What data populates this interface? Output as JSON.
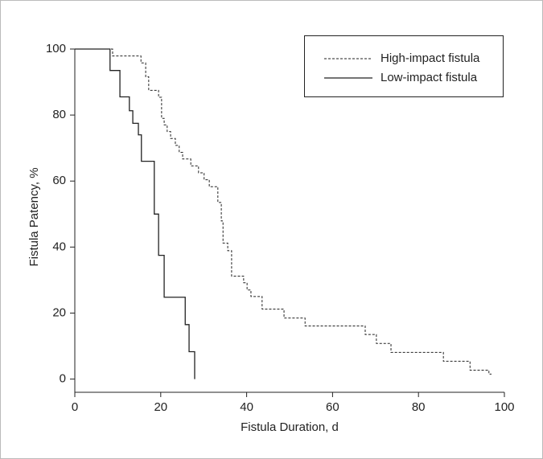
{
  "chart_data": {
    "type": "line",
    "xlabel": "Fistula Duration, d",
    "ylabel": "Fistula Patency, %",
    "xlim": [
      0,
      100
    ],
    "ylim": [
      -4,
      100
    ],
    "xticks": [
      0,
      20,
      40,
      60,
      80,
      100
    ],
    "yticks": [
      0,
      20,
      40,
      60,
      80,
      100
    ],
    "legend": "upper right",
    "series": [
      {
        "name": "High-impact fistula",
        "color": "#222222",
        "dashed": true,
        "x": [
          0,
          8.8,
          8.8,
          15.4,
          15.4,
          16.5,
          16.5,
          17.2,
          17.2,
          19.5,
          19.5,
          20.2,
          20.2,
          20.8,
          20.8,
          21.5,
          21.5,
          22.3,
          22.3,
          23.4,
          23.4,
          24.3,
          24.3,
          25.1,
          25.1,
          27,
          27,
          28.8,
          28.8,
          30.1,
          30.1,
          31.3,
          31.3,
          33.3,
          33.3,
          34.1,
          34.1,
          34.5,
          34.5,
          35.6,
          35.6,
          36.5,
          36.5,
          39.3,
          39.3,
          40.1,
          40.1,
          41,
          41,
          43.6,
          43.6,
          48.7,
          48.7,
          53.6,
          53.6,
          67.6,
          67.6,
          70.2,
          70.2,
          73.6,
          73.6,
          85.8,
          85.8,
          92,
          92,
          96.4,
          96.4,
          97
        ],
        "values": [
          100,
          100,
          97.9,
          97.9,
          95.8,
          95.8,
          91.6,
          91.6,
          87.5,
          87.5,
          85.4,
          85.4,
          79,
          79,
          77,
          77,
          75,
          75,
          72.9,
          72.9,
          70.8,
          70.8,
          68.7,
          68.7,
          66.7,
          66.7,
          64.6,
          64.6,
          62.5,
          62.5,
          60.4,
          60.4,
          58.3,
          58.3,
          53.5,
          53.5,
          47.9,
          47.9,
          41.2,
          41.2,
          38.9,
          38.9,
          31.2,
          31.2,
          29.2,
          29.2,
          27,
          27,
          25,
          25,
          21.2,
          21.2,
          18.5,
          18.5,
          16.1,
          16.1,
          13.5,
          13.5,
          10.8,
          10.8,
          8.1,
          8.1,
          5.4,
          5.4,
          2.7,
          2.7,
          1.5,
          1.5
        ]
      },
      {
        "name": "Low-impact fistula",
        "color": "#222222",
        "dashed": false,
        "x": [
          0,
          8.2,
          8.2,
          10.5,
          10.5,
          12.7,
          12.7,
          13.5,
          13.5,
          14.8,
          14.8,
          15.5,
          15.5,
          18.5,
          18.5,
          19.5,
          19.5,
          20.8,
          20.8,
          25.7,
          25.7,
          26.6,
          26.6,
          27.9,
          27.9
        ],
        "values": [
          100,
          100,
          93.5,
          93.5,
          85.5,
          85.5,
          81.3,
          81.3,
          77.5,
          77.5,
          74,
          74,
          66,
          66,
          50,
          50,
          37.5,
          37.5,
          24.8,
          24.8,
          16.5,
          16.5,
          8.3,
          8.3,
          0
        ]
      }
    ]
  }
}
